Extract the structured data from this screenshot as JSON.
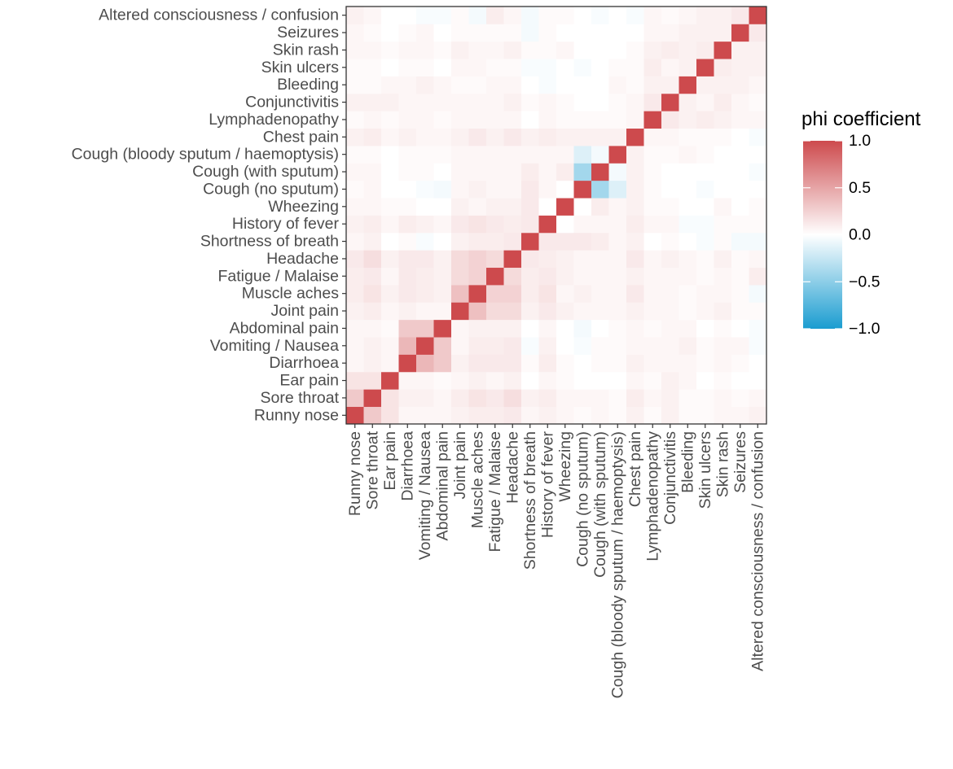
{
  "chart_data": {
    "type": "heatmap",
    "variables": [
      "Runny nose",
      "Sore throat",
      "Ear pain",
      "Diarrhoea",
      "Vomiting / Nausea",
      "Abdominal pain",
      "Joint pain",
      "Muscle aches",
      "Fatigue / Malaise",
      "Headache",
      "Shortness of breath",
      "History of fever",
      "Wheezing",
      "Cough (no sputum)",
      "Cough (with sputum)",
      "Cough (bloody sputum / haemoptysis)",
      "Chest pain",
      "Lymphadenopathy",
      "Conjunctivitis",
      "Bleeding",
      "Skin ulcers",
      "Skin rash",
      "Seizures",
      "Altered consciousness / confusion"
    ],
    "matrix": [
      [
        1.0,
        0.3,
        0.15,
        0.05,
        0.05,
        0.05,
        0.08,
        0.1,
        0.1,
        0.12,
        0.05,
        0.08,
        0.05,
        0.03,
        0.05,
        0.03,
        0.08,
        0.03,
        0.08,
        0.03,
        0.03,
        0.05,
        0.05,
        0.08
      ],
      [
        0.3,
        1.0,
        0.15,
        0.08,
        0.08,
        0.05,
        0.1,
        0.15,
        0.12,
        0.18,
        0.08,
        0.1,
        0.05,
        0.05,
        0.05,
        0.03,
        0.1,
        0.05,
        0.08,
        0.03,
        0.03,
        0.05,
        0.03,
        0.05
      ],
      [
        0.15,
        0.15,
        1.0,
        0.05,
        0.05,
        0.03,
        0.05,
        0.08,
        0.05,
        0.08,
        0.0,
        0.05,
        0.03,
        0.0,
        0.0,
        0.0,
        0.05,
        0.03,
        0.08,
        0.05,
        0.0,
        0.03,
        0.0,
        0.0
      ],
      [
        0.05,
        0.08,
        0.05,
        1.0,
        0.4,
        0.3,
        0.08,
        0.12,
        0.12,
        0.12,
        0.03,
        0.1,
        0.03,
        0.0,
        0.03,
        0.03,
        0.08,
        0.05,
        0.05,
        0.05,
        0.03,
        0.05,
        0.03,
        0.0
      ],
      [
        0.05,
        0.08,
        0.05,
        0.4,
        1.0,
        0.3,
        0.05,
        0.1,
        0.1,
        0.12,
        -0.03,
        0.08,
        0.0,
        -0.03,
        0.03,
        0.03,
        0.05,
        0.05,
        0.05,
        0.08,
        0.03,
        0.05,
        0.05,
        -0.03
      ],
      [
        0.05,
        0.05,
        0.03,
        0.3,
        0.3,
        1.0,
        0.05,
        0.08,
        0.08,
        0.08,
        0.0,
        0.05,
        0.0,
        -0.05,
        0.0,
        0.03,
        0.05,
        0.03,
        0.05,
        0.05,
        0.0,
        0.03,
        0.0,
        -0.03
      ],
      [
        0.08,
        0.1,
        0.05,
        0.08,
        0.05,
        0.05,
        1.0,
        0.35,
        0.2,
        0.2,
        0.08,
        0.12,
        0.08,
        0.05,
        0.05,
        0.05,
        0.08,
        0.05,
        0.05,
        0.03,
        0.05,
        0.08,
        0.03,
        0.03
      ],
      [
        0.1,
        0.15,
        0.08,
        0.12,
        0.1,
        0.08,
        0.35,
        1.0,
        0.25,
        0.25,
        0.1,
        0.15,
        0.05,
        0.08,
        0.05,
        0.05,
        0.12,
        0.05,
        0.05,
        0.03,
        0.05,
        0.05,
        0.03,
        -0.05
      ],
      [
        0.1,
        0.12,
        0.05,
        0.12,
        0.1,
        0.08,
        0.2,
        0.25,
        1.0,
        0.2,
        0.1,
        0.12,
        0.08,
        0.05,
        0.05,
        0.05,
        0.08,
        0.05,
        0.05,
        0.05,
        0.03,
        0.05,
        0.03,
        0.1
      ],
      [
        0.12,
        0.18,
        0.08,
        0.12,
        0.12,
        0.08,
        0.2,
        0.25,
        0.2,
        1.0,
        0.12,
        0.1,
        0.08,
        0.05,
        0.05,
        0.05,
        0.12,
        0.05,
        0.08,
        0.05,
        0.03,
        0.08,
        0.03,
        0.05
      ],
      [
        0.05,
        0.08,
        0.0,
        0.03,
        -0.03,
        0.0,
        0.08,
        0.1,
        0.1,
        0.12,
        1.0,
        0.12,
        0.12,
        0.12,
        0.1,
        0.05,
        0.08,
        0.0,
        0.03,
        0.0,
        -0.03,
        0.03,
        -0.05,
        -0.05
      ],
      [
        0.08,
        0.1,
        0.05,
        0.1,
        0.08,
        0.05,
        0.12,
        0.15,
        0.12,
        0.1,
        0.12,
        1.0,
        0.0,
        0.05,
        0.05,
        0.05,
        0.1,
        0.05,
        0.05,
        -0.03,
        -0.03,
        0.03,
        0.03,
        0.03
      ],
      [
        0.05,
        0.05,
        0.03,
        0.03,
        0.0,
        0.0,
        0.08,
        0.05,
        0.08,
        0.08,
        0.12,
        0.0,
        1.0,
        0.0,
        0.1,
        0.05,
        0.08,
        0.03,
        0.03,
        0.0,
        0.0,
        0.05,
        0.0,
        0.03
      ],
      [
        0.03,
        0.05,
        0.0,
        0.0,
        -0.03,
        -0.05,
        0.05,
        0.08,
        0.05,
        0.05,
        0.12,
        0.05,
        0.0,
        1.0,
        -0.4,
        -0.15,
        0.08,
        0.03,
        0.0,
        0.0,
        -0.03,
        0.0,
        0.0,
        0.0
      ],
      [
        0.05,
        0.05,
        0.0,
        0.03,
        0.03,
        0.0,
        0.05,
        0.05,
        0.05,
        0.05,
        0.1,
        0.05,
        0.1,
        -0.4,
        1.0,
        -0.05,
        0.08,
        0.03,
        0.0,
        0.0,
        0.0,
        0.0,
        0.0,
        -0.03
      ],
      [
        0.03,
        0.03,
        0.0,
        0.03,
        0.03,
        0.03,
        0.05,
        0.05,
        0.05,
        0.05,
        0.05,
        0.05,
        0.05,
        -0.15,
        -0.05,
        1.0,
        0.08,
        0.03,
        0.03,
        0.05,
        0.03,
        0.0,
        0.0,
        0.0
      ],
      [
        0.08,
        0.1,
        0.05,
        0.08,
        0.05,
        0.05,
        0.08,
        0.12,
        0.08,
        0.12,
        0.08,
        0.1,
        0.08,
        0.08,
        0.08,
        0.08,
        1.0,
        0.05,
        0.05,
        0.03,
        0.03,
        0.03,
        0.0,
        -0.03
      ],
      [
        0.03,
        0.05,
        0.03,
        0.05,
        0.05,
        0.03,
        0.05,
        0.05,
        0.05,
        0.05,
        0.0,
        0.05,
        0.03,
        0.03,
        0.03,
        0.03,
        0.05,
        1.0,
        0.12,
        0.08,
        0.1,
        0.08,
        0.05,
        0.05
      ],
      [
        0.08,
        0.08,
        0.08,
        0.05,
        0.05,
        0.05,
        0.05,
        0.05,
        0.05,
        0.08,
        0.03,
        0.05,
        0.03,
        0.0,
        0.0,
        0.03,
        0.05,
        0.12,
        1.0,
        0.08,
        0.05,
        0.1,
        0.05,
        0.03
      ],
      [
        0.03,
        0.03,
        0.05,
        0.05,
        0.08,
        0.05,
        0.03,
        0.03,
        0.05,
        0.05,
        0.0,
        -0.03,
        0.0,
        0.0,
        0.0,
        0.05,
        0.03,
        0.08,
        0.08,
        1.0,
        0.08,
        0.08,
        0.08,
        0.05
      ],
      [
        0.03,
        0.03,
        0.0,
        0.03,
        0.03,
        0.0,
        0.05,
        0.05,
        0.03,
        0.03,
        -0.03,
        -0.03,
        0.0,
        -0.03,
        0.0,
        0.03,
        0.03,
        0.1,
        0.05,
        0.08,
        1.0,
        0.1,
        0.08,
        0.08
      ],
      [
        0.05,
        0.05,
        0.03,
        0.05,
        0.05,
        0.03,
        0.08,
        0.05,
        0.05,
        0.08,
        0.03,
        0.03,
        0.05,
        0.0,
        0.0,
        0.0,
        0.03,
        0.08,
        0.1,
        0.08,
        0.1,
        1.0,
        0.08,
        0.08
      ],
      [
        0.05,
        0.03,
        0.0,
        0.03,
        0.05,
        0.0,
        0.03,
        0.03,
        0.03,
        0.03,
        -0.05,
        0.03,
        0.0,
        0.0,
        0.0,
        0.0,
        0.0,
        0.05,
        0.05,
        0.08,
        0.08,
        0.08,
        1.0,
        0.12
      ],
      [
        0.08,
        0.05,
        0.0,
        0.0,
        -0.03,
        -0.03,
        0.03,
        -0.05,
        0.1,
        0.05,
        -0.05,
        0.03,
        0.03,
        0.0,
        -0.03,
        0.0,
        -0.03,
        0.05,
        0.03,
        0.05,
        0.08,
        0.08,
        0.12,
        1.0
      ]
    ],
    "color_scale": {
      "title": "phi coefficient",
      "min": -1,
      "max": 1,
      "low_color": "#1a9cd0",
      "mid_color": "#ffffff",
      "high_color": "#cd4a4d",
      "ticks": [
        1,
        0.5,
        0,
        -0.5,
        -1
      ],
      "tick_labels": [
        "1.0",
        "0.5",
        "0.0",
        "−0.5",
        "−1.0"
      ]
    },
    "legend_position": "right"
  }
}
